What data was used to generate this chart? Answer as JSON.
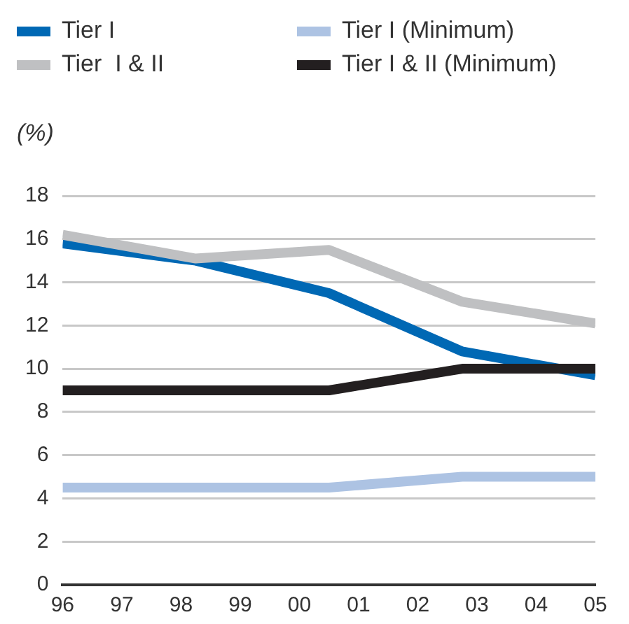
{
  "chart_data": {
    "type": "line",
    "ylabel": "(%)",
    "x": [
      1996,
      1998.25,
      2000.5,
      2002.75,
      2005
    ],
    "series": [
      {
        "name": "Tier I",
        "color": "#0068b4",
        "values": [
          15.8,
          15.0,
          13.5,
          10.8,
          9.7
        ]
      },
      {
        "name": "Tier  I & II",
        "color": "#bfc0c2",
        "values": [
          16.2,
          15.1,
          15.5,
          13.1,
          12.1
        ]
      },
      {
        "name": "Tier I (Minimum)",
        "color": "#adc3e3",
        "values": [
          4.5,
          4.5,
          4.5,
          5,
          5
        ]
      },
      {
        "name": "Tier I & II (Minimum)",
        "color": "#231f20",
        "values": [
          9,
          9,
          9,
          10,
          10
        ]
      }
    ],
    "xlim": [
      1996,
      2005
    ],
    "xticks": [
      {
        "value": 1996,
        "label": "96"
      },
      {
        "value": 1997,
        "label": "97"
      },
      {
        "value": 1998,
        "label": "98"
      },
      {
        "value": 1999,
        "label": "99"
      },
      {
        "value": 2000,
        "label": "00"
      },
      {
        "value": 2001,
        "label": "01"
      },
      {
        "value": 2002,
        "label": "02"
      },
      {
        "value": 2003,
        "label": "03"
      },
      {
        "value": 2004,
        "label": "04"
      },
      {
        "value": 2005,
        "label": "05"
      }
    ],
    "ylim": [
      0,
      18
    ],
    "yticks": [
      0,
      2,
      4,
      6,
      8,
      10,
      12,
      14,
      16,
      18
    ],
    "grid": "y",
    "legend": "top",
    "marker": "none",
    "line_style": "solid"
  }
}
